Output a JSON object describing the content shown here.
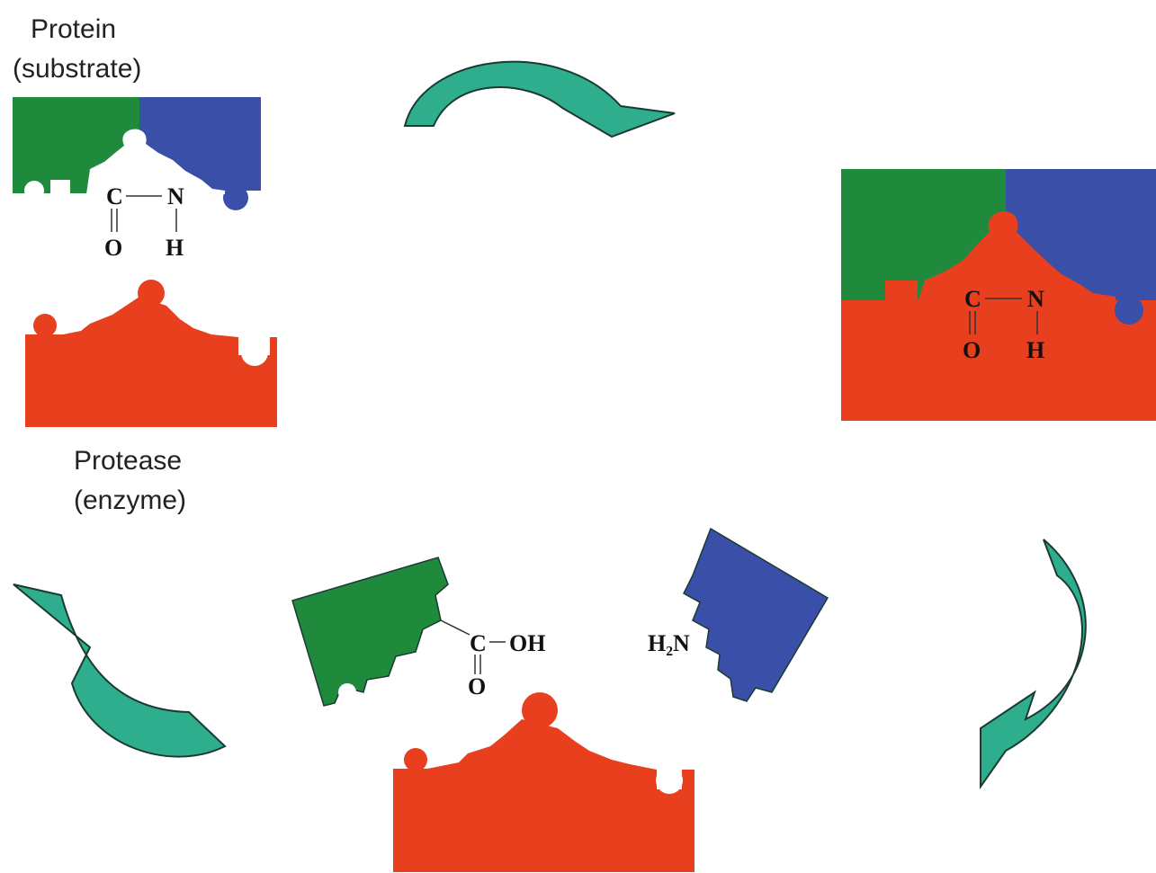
{
  "substrate": {
    "title": "Protein",
    "subtitle": "(substrate)",
    "bond": {
      "c": "C",
      "n": "N",
      "o": "O",
      "h": "H"
    }
  },
  "enzyme": {
    "title": "Protease",
    "subtitle": "(enzyme)"
  },
  "complex": {
    "bond": {
      "c": "C",
      "n": "N",
      "o": "O",
      "h": "H"
    }
  },
  "products": {
    "acid": {
      "c": "C",
      "oh": "OH",
      "o": "O"
    },
    "amine": "H₂N"
  }
}
